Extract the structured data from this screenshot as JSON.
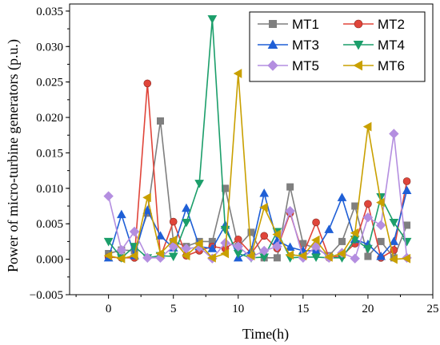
{
  "chart_data": {
    "type": "line",
    "xlabel": "Time(h)",
    "ylabel": "Power of micro-turbine generators (p.u.)",
    "xlim": [
      -3,
      25
    ],
    "ylim": [
      -0.005,
      0.036
    ],
    "xticks": [
      0,
      5,
      10,
      15,
      20,
      25
    ],
    "yticks": [
      -0.005,
      0,
      0.005,
      0.01,
      0.015,
      0.02,
      0.025,
      0.03,
      0.035
    ],
    "ytick_labels": [
      "−0.005",
      "0.000",
      "0.005",
      "0.010",
      "0.015",
      "0.020",
      "0.025",
      "0.030",
      "0.035"
    ],
    "xtick_labels": [
      "0",
      "5",
      "10",
      "15",
      "20",
      "25"
    ],
    "legend_position": "top-right",
    "grid": false,
    "x": [
      0,
      1,
      2,
      3,
      4,
      5,
      6,
      7,
      8,
      9,
      10,
      11,
      12,
      13,
      14,
      15,
      16,
      17,
      18,
      19,
      20,
      21,
      22,
      23
    ],
    "series": [
      {
        "name": "MT1",
        "color": "#7f7f7f",
        "marker": "square",
        "values": [
          0.0008,
          0.0013,
          0.0012,
          0.0065,
          0.0195,
          0.0025,
          0.0018,
          0.0025,
          0.0025,
          0.01,
          0.0018,
          0.0038,
          0.0002,
          0.0002,
          0.0102,
          0.0022,
          0.0015,
          0.0005,
          0.0025,
          0.0075,
          0.0004,
          0.0025,
          0.0002,
          0.0048
        ]
      },
      {
        "name": "MT2",
        "color": "#e0453a",
        "marker": "circle",
        "values": [
          0.0003,
          0.0002,
          0.0002,
          0.0248,
          0.0003,
          0.0053,
          0.0005,
          0.0012,
          0.0018,
          0.0015,
          0.0028,
          0.0008,
          0.0033,
          0.0015,
          0.0065,
          0.0007,
          0.0052,
          0.0002,
          0.0005,
          0.0022,
          0.0078,
          0.0002,
          0.0013,
          0.011
        ]
      },
      {
        "name": "MT3",
        "color": "#1f5fd6",
        "marker": "triangle-up",
        "values": [
          0.0002,
          0.0063,
          0.0005,
          0.0069,
          0.0033,
          0.0016,
          0.0072,
          0.0018,
          0.0015,
          0.0048,
          0.0002,
          0.0012,
          0.0093,
          0.0026,
          0.0017,
          0.0012,
          0.0012,
          0.0042,
          0.0087,
          0.0028,
          0.0021,
          0.0004,
          0.0025,
          0.0097
        ]
      },
      {
        "name": "MT4",
        "color": "#1b9e6a",
        "marker": "triangle-down",
        "values": [
          0.0025,
          0.0002,
          0.0018,
          0.0002,
          0.0005,
          0.0004,
          0.0052,
          0.0107,
          0.0339,
          0.0042,
          0.0008,
          0.0002,
          0.0003,
          0.0039,
          0.0002,
          0.0003,
          0.0003,
          0.0002,
          0.0002,
          0.0028,
          0.0015,
          0.0088,
          0.0052,
          0.0025
        ]
      },
      {
        "name": "MT5",
        "color": "#b48ee0",
        "marker": "diamond",
        "values": [
          0.0089,
          0.0013,
          0.0039,
          0.0002,
          0.0002,
          0.0018,
          0.0015,
          0.0017,
          0.0001,
          0.0023,
          0.0018,
          0.0003,
          0.0012,
          0.0018,
          0.0068,
          0.0002,
          0.0018,
          0.0002,
          0.0009,
          0.0001,
          0.0059,
          0.0048,
          0.0177,
          0.0002
        ]
      },
      {
        "name": "MT6",
        "color": "#c9a000",
        "marker": "triangle-left",
        "values": [
          0.0005,
          0.0001,
          0.0005,
          0.0087,
          0.0008,
          0.0027,
          0.0005,
          0.0022,
          0.0002,
          0.0008,
          0.0262,
          0.0005,
          0.0073,
          0.0035,
          0.0006,
          0.0005,
          0.0027,
          0.0003,
          0.0008,
          0.0037,
          0.0187,
          0.008,
          0.0,
          0.0001
        ]
      }
    ]
  }
}
